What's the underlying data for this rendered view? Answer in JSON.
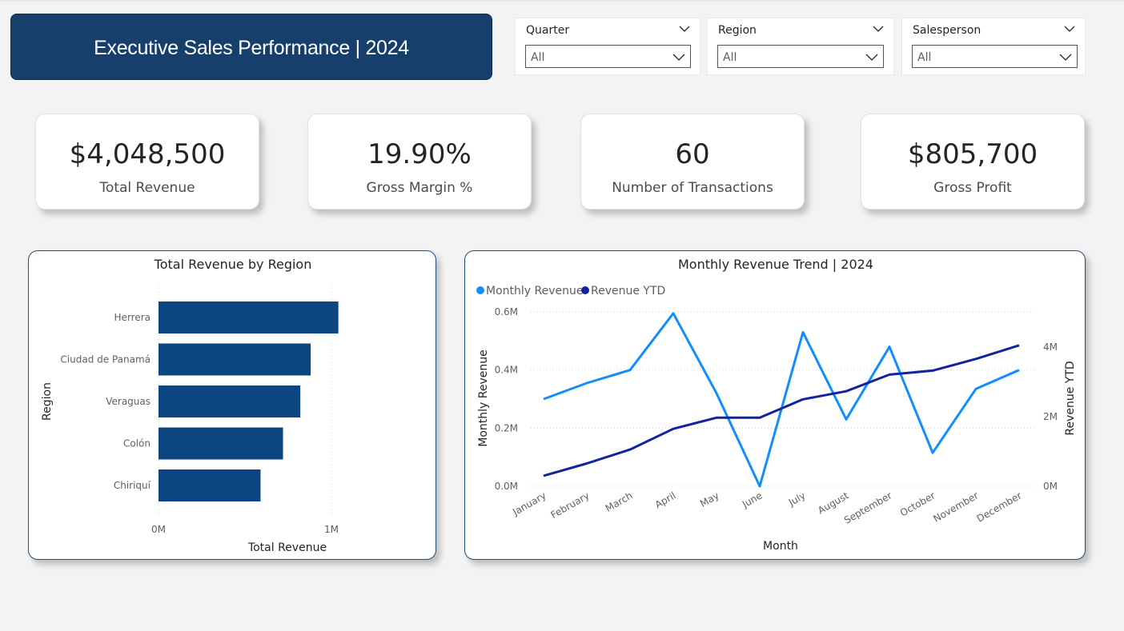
{
  "header": {
    "title": "Executive Sales Performance | 2024"
  },
  "filters": [
    {
      "label": "Quarter",
      "value": "All"
    },
    {
      "label": "Region",
      "value": "All"
    },
    {
      "label": "Salesperson",
      "value": "All"
    }
  ],
  "kpis": [
    {
      "value": "$4,048,500",
      "label": "Total Revenue"
    },
    {
      "value": "19.90%",
      "label": "Gross Margin %"
    },
    {
      "value": "60",
      "label": "Number of Transactions"
    },
    {
      "value": "$805,700",
      "label": "Gross Profit"
    }
  ],
  "colors": {
    "banner": "#163f6b",
    "bar": "#0b4680",
    "monthly": "#118dff",
    "ytd": "#12239e"
  },
  "chart_data": [
    {
      "type": "bar",
      "orientation": "horizontal",
      "title": "Total Revenue by Region",
      "xlabel": "Total Revenue",
      "ylabel": "Region",
      "categories": [
        "Herrera",
        "Ciudad de Panamá",
        "Veraguas",
        "Colón",
        "Chiriquí"
      ],
      "values": [
        1040000,
        880000,
        820000,
        720000,
        590000
      ],
      "xlim": [
        0,
        1000000
      ],
      "x_ticks": [
        "0M",
        "1M"
      ],
      "grid": true
    },
    {
      "type": "line",
      "title": "Monthly Revenue Trend | 2024",
      "xlabel": "Month",
      "ylabel": "Monthly Revenue",
      "y2label": "Revenue YTD",
      "categories": [
        "January",
        "February",
        "March",
        "April",
        "May",
        "June",
        "July",
        "August",
        "September",
        "October",
        "November",
        "December"
      ],
      "series": [
        {
          "name": "Monthly Revenue",
          "axis": "left",
          "values": [
            300000,
            355000,
            400000,
            595000,
            320000,
            0,
            530000,
            230000,
            480000,
            115000,
            335000,
            400000
          ]
        },
        {
          "name": "Revenue YTD",
          "axis": "right",
          "values": [
            300000,
            655000,
            1055000,
            1650000,
            1970000,
            1970000,
            2500000,
            2730000,
            3210000,
            3325000,
            3660000,
            4050000
          ]
        }
      ],
      "ylim": [
        0,
        600000
      ],
      "y2lim": [
        0,
        4000000
      ],
      "y_ticks": [
        "0.0M",
        "0.2M",
        "0.4M",
        "0.6M"
      ],
      "y2_ticks": [
        "0M",
        "2M",
        "4M"
      ],
      "legend": "top-left",
      "grid": true
    }
  ]
}
